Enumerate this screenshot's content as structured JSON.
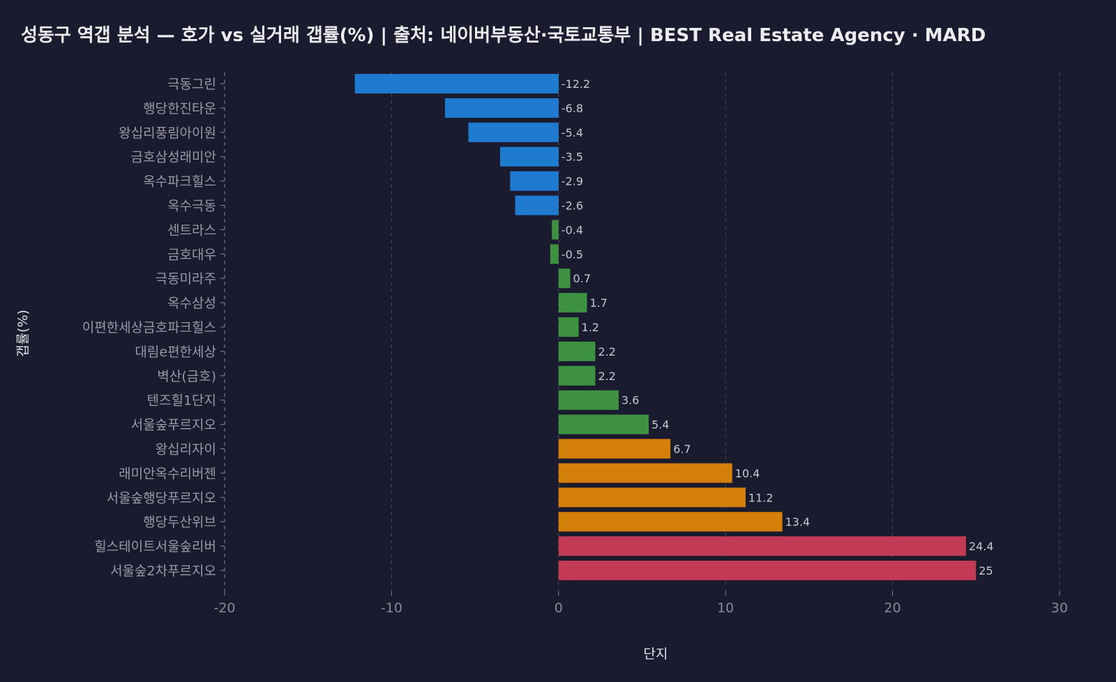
{
  "chart_data": {
    "type": "bar",
    "orientation": "horizontal",
    "title": "성동구 역갭 분석 — 호가 vs 실거래 갭률(%) | 출처: 네이버부동산·국토교통부 | BEST Real Estate Agency · MARD",
    "xlabel": "단지",
    "ylabel": "갭률(%)",
    "xlim": [
      -20,
      30
    ],
    "xticks": [
      "-20",
      "-10",
      "0",
      "10",
      "20",
      "30"
    ],
    "grid": "vertical dashed",
    "categories": [
      "극동그린",
      "행당한진타운",
      "왕십리풍림아이원",
      "금호삼성래미안",
      "옥수파크힐스",
      "옥수극동",
      "센트라스",
      "금호대우",
      "극동미라주",
      "옥수삼성",
      "이편한세상금호파크힐스",
      "대림e편한세상",
      "벽산(금호)",
      "텐즈힐1단지",
      "서울숲푸르지오",
      "왕십리자이",
      "래미안옥수리버젠",
      "서울숲행당푸르지오",
      "행당두산위브",
      "힐스테이트서울숲리버",
      "서울숲2차푸르지오"
    ],
    "values": [
      -12.2,
      -6.8,
      -5.4,
      -3.5,
      -2.9,
      -2.6,
      -0.4,
      -0.5,
      0.7,
      1.7,
      1.2,
      2.2,
      2.2,
      3.6,
      5.4,
      6.7,
      10.4,
      11.2,
      13.4,
      24.4,
      25
    ],
    "value_labels": [
      "-12.2",
      "-6.8",
      "-5.4",
      "-3.5",
      "-2.9",
      "-2.6",
      "-0.4",
      "-0.5",
      "0.7",
      "1.7",
      "1.2",
      "2.2",
      "2.2",
      "3.6",
      "5.4",
      "6.7",
      "10.4",
      "11.2",
      "13.4",
      "24.4",
      "25"
    ],
    "colors": [
      "#1f7bd0",
      "#1f7bd0",
      "#1f7bd0",
      "#1f7bd0",
      "#1f7bd0",
      "#1f7bd0",
      "#3f9142",
      "#3f9142",
      "#3f9142",
      "#3f9142",
      "#3f9142",
      "#3f9142",
      "#3f9142",
      "#3f9142",
      "#3f9142",
      "#d48008",
      "#d48008",
      "#d48008",
      "#d48008",
      "#c23a53",
      "#c23a53"
    ]
  },
  "colors": {
    "background": "#1a1b2e"
  }
}
